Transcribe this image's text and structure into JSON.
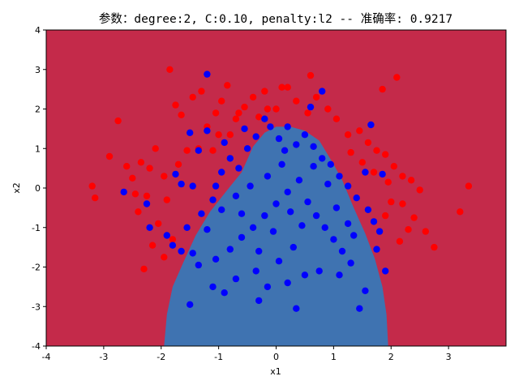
{
  "chart_data": {
    "type": "scatter",
    "title": "参数：degree:2, C:0.10, penalty:l2 -- 准确率: 0.9217",
    "xlabel": "x1",
    "ylabel": "x2",
    "xlim": [
      -4,
      4
    ],
    "ylim": [
      -4,
      4
    ],
    "x_ticks": [
      "-4",
      "-3",
      "-2",
      "-1",
      "0",
      "1",
      "2",
      "3"
    ],
    "y_ticks": [
      "4",
      "3",
      "2",
      "1",
      "0",
      "-1",
      "-2",
      "-3",
      "-4"
    ],
    "grid": false,
    "decision_regions": {
      "outer_color": "#c42a4a",
      "inner_color": "#3f73b1",
      "inner_boundary": [
        [
          -1.95,
          -4.0
        ],
        [
          -1.9,
          -3.2
        ],
        [
          -1.8,
          -2.5
        ],
        [
          -1.62,
          -1.9
        ],
        [
          -1.4,
          -1.2
        ],
        [
          -1.15,
          -0.6
        ],
        [
          -0.85,
          -0.05
        ],
        [
          -0.6,
          0.4
        ],
        [
          -0.4,
          1.05
        ],
        [
          -0.2,
          1.4
        ],
        [
          0.0,
          1.55
        ],
        [
          0.25,
          1.55
        ],
        [
          0.5,
          1.45
        ],
        [
          0.75,
          1.2
        ],
        [
          1.0,
          0.6
        ],
        [
          1.15,
          0.2
        ],
        [
          1.35,
          -0.5
        ],
        [
          1.55,
          -1.15
        ],
        [
          1.72,
          -1.8
        ],
        [
          1.85,
          -2.5
        ],
        [
          1.92,
          -3.2
        ],
        [
          1.95,
          -4.0
        ]
      ]
    },
    "series": [
      {
        "color": "#ff0000",
        "points": [
          [
            -2.9,
            0.8
          ],
          [
            -3.2,
            0.05
          ],
          [
            -3.15,
            -0.25
          ],
          [
            -2.75,
            1.7
          ],
          [
            -2.6,
            0.55
          ],
          [
            -2.35,
            0.65
          ],
          [
            -2.4,
            -0.6
          ],
          [
            -2.3,
            -2.05
          ],
          [
            -2.1,
            1.0
          ],
          [
            -1.95,
            0.3
          ],
          [
            -1.85,
            3.0
          ],
          [
            -1.75,
            2.1
          ],
          [
            -1.65,
            1.85
          ],
          [
            -1.55,
            0.95
          ],
          [
            -1.45,
            2.3
          ],
          [
            -1.3,
            2.45
          ],
          [
            -1.2,
            1.55
          ],
          [
            -1.05,
            1.9
          ],
          [
            -0.95,
            2.2
          ],
          [
            -0.85,
            2.6
          ],
          [
            -0.7,
            1.75
          ],
          [
            -0.55,
            2.05
          ],
          [
            -0.4,
            2.3
          ],
          [
            -0.2,
            2.45
          ],
          [
            0.0,
            2.0
          ],
          [
            0.2,
            2.55
          ],
          [
            0.35,
            2.2
          ],
          [
            0.55,
            1.9
          ],
          [
            0.7,
            2.3
          ],
          [
            0.9,
            2.0
          ],
          [
            1.05,
            1.75
          ],
          [
            1.25,
            1.35
          ],
          [
            1.45,
            1.45
          ],
          [
            1.6,
            1.15
          ],
          [
            1.75,
            0.95
          ],
          [
            1.9,
            0.85
          ],
          [
            2.05,
            0.55
          ],
          [
            2.2,
            0.3
          ],
          [
            2.35,
            0.2
          ],
          [
            2.5,
            -0.05
          ],
          [
            2.4,
            -0.75
          ],
          [
            2.3,
            -1.05
          ],
          [
            2.15,
            -1.35
          ],
          [
            2.6,
            -1.1
          ],
          [
            2.75,
            -1.5
          ],
          [
            3.2,
            -0.6
          ],
          [
            3.35,
            0.05
          ],
          [
            2.1,
            2.8
          ],
          [
            1.85,
            2.5
          ],
          [
            0.6,
            2.85
          ],
          [
            0.1,
            2.55
          ],
          [
            -0.15,
            2.0
          ],
          [
            -0.3,
            1.8
          ],
          [
            -0.65,
            1.9
          ],
          [
            -1.0,
            1.35
          ],
          [
            -1.7,
            0.6
          ],
          [
            -1.9,
            -0.3
          ],
          [
            -2.05,
            -0.9
          ],
          [
            -2.15,
            -1.45
          ],
          [
            -1.95,
            -1.75
          ],
          [
            -1.8,
            -1.3
          ],
          [
            -2.25,
            -0.2
          ],
          [
            -2.45,
            -0.15
          ],
          [
            -2.5,
            0.25
          ],
          [
            -2.2,
            0.5
          ],
          [
            -1.35,
            1.0
          ],
          [
            -1.1,
            0.95
          ],
          [
            -0.8,
            1.35
          ],
          [
            1.3,
            0.9
          ],
          [
            1.5,
            0.65
          ],
          [
            1.7,
            0.4
          ],
          [
            1.95,
            0.15
          ],
          [
            2.0,
            -0.35
          ],
          [
            1.9,
            -0.7
          ],
          [
            2.2,
            -0.4
          ]
        ]
      },
      {
        "color": "#0000ff",
        "points": [
          [
            -1.75,
            0.35
          ],
          [
            -1.65,
            0.1
          ],
          [
            -1.5,
            1.4
          ],
          [
            -1.35,
            0.95
          ],
          [
            -1.2,
            1.45
          ],
          [
            -2.65,
            -0.1
          ],
          [
            -2.25,
            -0.4
          ],
          [
            -2.2,
            -1.0
          ],
          [
            -1.9,
            -1.2
          ],
          [
            -1.8,
            -1.45
          ],
          [
            -1.65,
            -1.6
          ],
          [
            -1.45,
            -1.65
          ],
          [
            -1.55,
            -1.0
          ],
          [
            -1.3,
            -0.65
          ],
          [
            -1.1,
            -0.3
          ],
          [
            -0.95,
            0.4
          ],
          [
            -0.8,
            0.75
          ],
          [
            -0.65,
            0.5
          ],
          [
            -0.5,
            1.0
          ],
          [
            -0.35,
            1.3
          ],
          [
            -0.2,
            1.75
          ],
          [
            -0.1,
            1.55
          ],
          [
            0.05,
            1.25
          ],
          [
            0.2,
            1.55
          ],
          [
            0.35,
            1.1
          ],
          [
            0.5,
            1.35
          ],
          [
            0.65,
            1.05
          ],
          [
            0.8,
            0.75
          ],
          [
            0.95,
            0.6
          ],
          [
            1.1,
            0.3
          ],
          [
            1.25,
            0.05
          ],
          [
            1.4,
            -0.25
          ],
          [
            1.6,
            -0.55
          ],
          [
            1.7,
            -0.85
          ],
          [
            1.55,
            0.4
          ],
          [
            1.65,
            1.6
          ],
          [
            1.8,
            -1.1
          ],
          [
            1.85,
            0.35
          ],
          [
            1.75,
            -1.55
          ],
          [
            1.9,
            -2.1
          ],
          [
            1.55,
            -2.6
          ],
          [
            1.45,
            -3.05
          ],
          [
            0.8,
            2.45
          ],
          [
            0.6,
            2.05
          ],
          [
            -1.2,
            2.88
          ],
          [
            -0.3,
            -2.85
          ],
          [
            -0.15,
            -2.5
          ],
          [
            0.2,
            -2.4
          ],
          [
            0.35,
            -3.05
          ],
          [
            0.5,
            -2.2
          ],
          [
            0.75,
            -2.1
          ],
          [
            1.1,
            -2.2
          ],
          [
            -0.7,
            -2.3
          ],
          [
            -0.9,
            -2.65
          ],
          [
            -1.1,
            -2.5
          ],
          [
            -1.5,
            -2.95
          ],
          [
            -1.35,
            -1.95
          ],
          [
            -1.05,
            -1.8
          ],
          [
            -0.8,
            -1.55
          ],
          [
            -0.6,
            -1.25
          ],
          [
            -0.4,
            -1.0
          ],
          [
            -0.2,
            -0.7
          ],
          [
            0.0,
            -0.4
          ],
          [
            0.2,
            -0.1
          ],
          [
            0.4,
            0.2
          ],
          [
            0.55,
            -0.35
          ],
          [
            0.7,
            -0.7
          ],
          [
            0.85,
            -1.0
          ],
          [
            1.0,
            -1.3
          ],
          [
            1.15,
            -1.6
          ],
          [
            1.3,
            -1.9
          ],
          [
            1.25,
            -0.9
          ],
          [
            1.05,
            -0.5
          ],
          [
            0.9,
            0.1
          ],
          [
            0.1,
            0.6
          ],
          [
            -0.15,
            0.3
          ],
          [
            -0.45,
            0.05
          ],
          [
            -0.7,
            -0.2
          ],
          [
            -0.95,
            -0.55
          ],
          [
            -1.2,
            -1.05
          ],
          [
            -0.3,
            -1.6
          ],
          [
            0.05,
            -1.85
          ],
          [
            0.3,
            -1.5
          ],
          [
            0.45,
            -0.95
          ],
          [
            -0.05,
            -1.1
          ],
          [
            0.15,
            0.95
          ],
          [
            -0.55,
            1.5
          ],
          [
            -0.9,
            1.15
          ],
          [
            -1.45,
            0.05
          ],
          [
            -1.05,
            0.05
          ],
          [
            -0.6,
            -0.65
          ],
          [
            0.25,
            -0.6
          ],
          [
            0.65,
            0.55
          ],
          [
            1.35,
            -1.2
          ],
          [
            -0.35,
            -2.1
          ]
        ]
      }
    ]
  }
}
